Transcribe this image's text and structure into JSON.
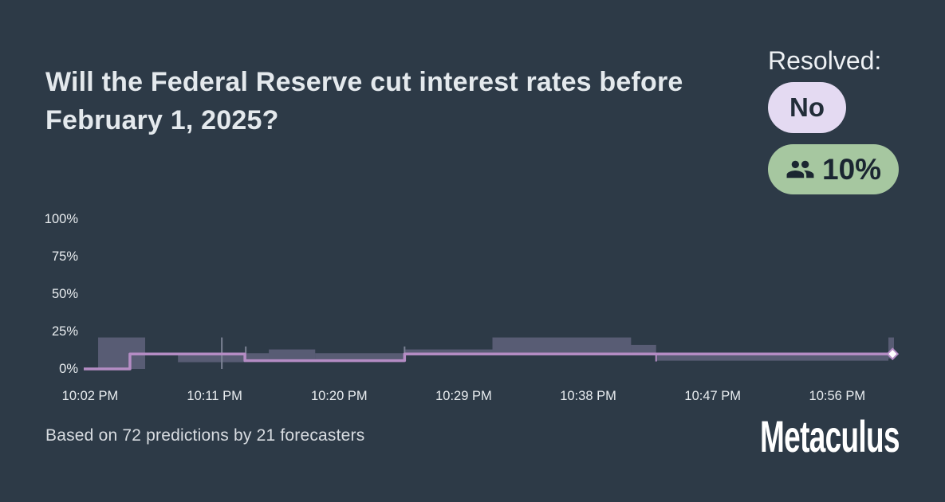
{
  "card": {
    "title": "Will the Federal Reserve cut interest rates before February 1, 2025?",
    "resolution": {
      "label": "Resolved:",
      "value": "No",
      "value_bg": "#e4daf2",
      "community_prediction": "10%",
      "community_bg": "#a6c7a0",
      "community_icon": "people-group-icon"
    },
    "footer": {
      "stats": "Based on 72 predictions by 21 forecasters",
      "logo": "Metaculus"
    },
    "colors": {
      "background": "#2d3a47",
      "title_text": "#e4e9ed"
    }
  },
  "chart_data": {
    "type": "line",
    "line_style": "step-after",
    "x_unit": "minutes_after_10:00_PM",
    "x_range": [
      1.54,
      60.1
    ],
    "ylim": [
      0,
      100
    ],
    "grid": false,
    "legend": false,
    "y_ticks": [
      {
        "v": 0,
        "label": "0%"
      },
      {
        "v": 25,
        "label": "25%"
      },
      {
        "v": 50,
        "label": "50%"
      },
      {
        "v": 75,
        "label": "75%"
      },
      {
        "v": 100,
        "label": "100%"
      }
    ],
    "x_ticks": [
      {
        "t": 2,
        "label": "10:02 PM"
      },
      {
        "t": 11,
        "label": "10:11 PM"
      },
      {
        "t": 20,
        "label": "10:20 PM"
      },
      {
        "t": 29,
        "label": "10:29 PM"
      },
      {
        "t": 38,
        "label": "10:38 PM"
      },
      {
        "t": 47,
        "label": "10:47 PM"
      },
      {
        "t": 56,
        "label": "10:56 PM"
      }
    ],
    "steps": [
      {
        "from": 1.54,
        "to": 4.88,
        "value": 0
      },
      {
        "from": 4.88,
        "to": 13.19,
        "value": 10
      },
      {
        "from": 13.19,
        "to": 24.73,
        "value": 5.5
      },
      {
        "from": 24.73,
        "to": 60.0,
        "value": 10
      }
    ],
    "bands": [
      {
        "from": 2.58,
        "to": 5.98,
        "low": 0,
        "high": 21
      },
      {
        "from": 8.35,
        "to": 13.19,
        "low": 4.5,
        "high": 9.5
      },
      {
        "from": 13.19,
        "to": 14.92,
        "low": 5.5,
        "high": 10.5
      },
      {
        "from": 14.92,
        "to": 18.27,
        "low": 5.5,
        "high": 13
      },
      {
        "from": 18.27,
        "to": 24.73,
        "low": 5.5,
        "high": 10.5
      },
      {
        "from": 24.73,
        "to": 31.08,
        "low": 10,
        "high": 13
      },
      {
        "from": 31.08,
        "to": 41.1,
        "low": 10,
        "high": 21
      },
      {
        "from": 41.1,
        "to": 42.91,
        "low": 10,
        "high": 16
      },
      {
        "from": 42.91,
        "to": 59.7,
        "low": 5.5,
        "high": 10
      },
      {
        "from": 59.7,
        "to": 60.1,
        "low": 7,
        "high": 21
      }
    ],
    "event_ticks": [
      {
        "t": 11.52,
        "v0": 0,
        "v1": 21,
        "color": "gray"
      },
      {
        "t": 13.25,
        "v0": 10.5,
        "v1": 15,
        "color": "gray"
      },
      {
        "t": 24.73,
        "v0": 10.5,
        "v1": 15,
        "color": "gray"
      },
      {
        "t": 42.91,
        "v0": 5,
        "v1": 10.5,
        "color": "purple"
      }
    ],
    "end_marker": {
      "t": 60,
      "value": 10,
      "label": "10%"
    },
    "colors": {
      "line": "#b48cc4",
      "band": "rgba(188,172,222,0.30)",
      "tick": "#7b8294",
      "marker_fill": "#ffffff"
    }
  }
}
